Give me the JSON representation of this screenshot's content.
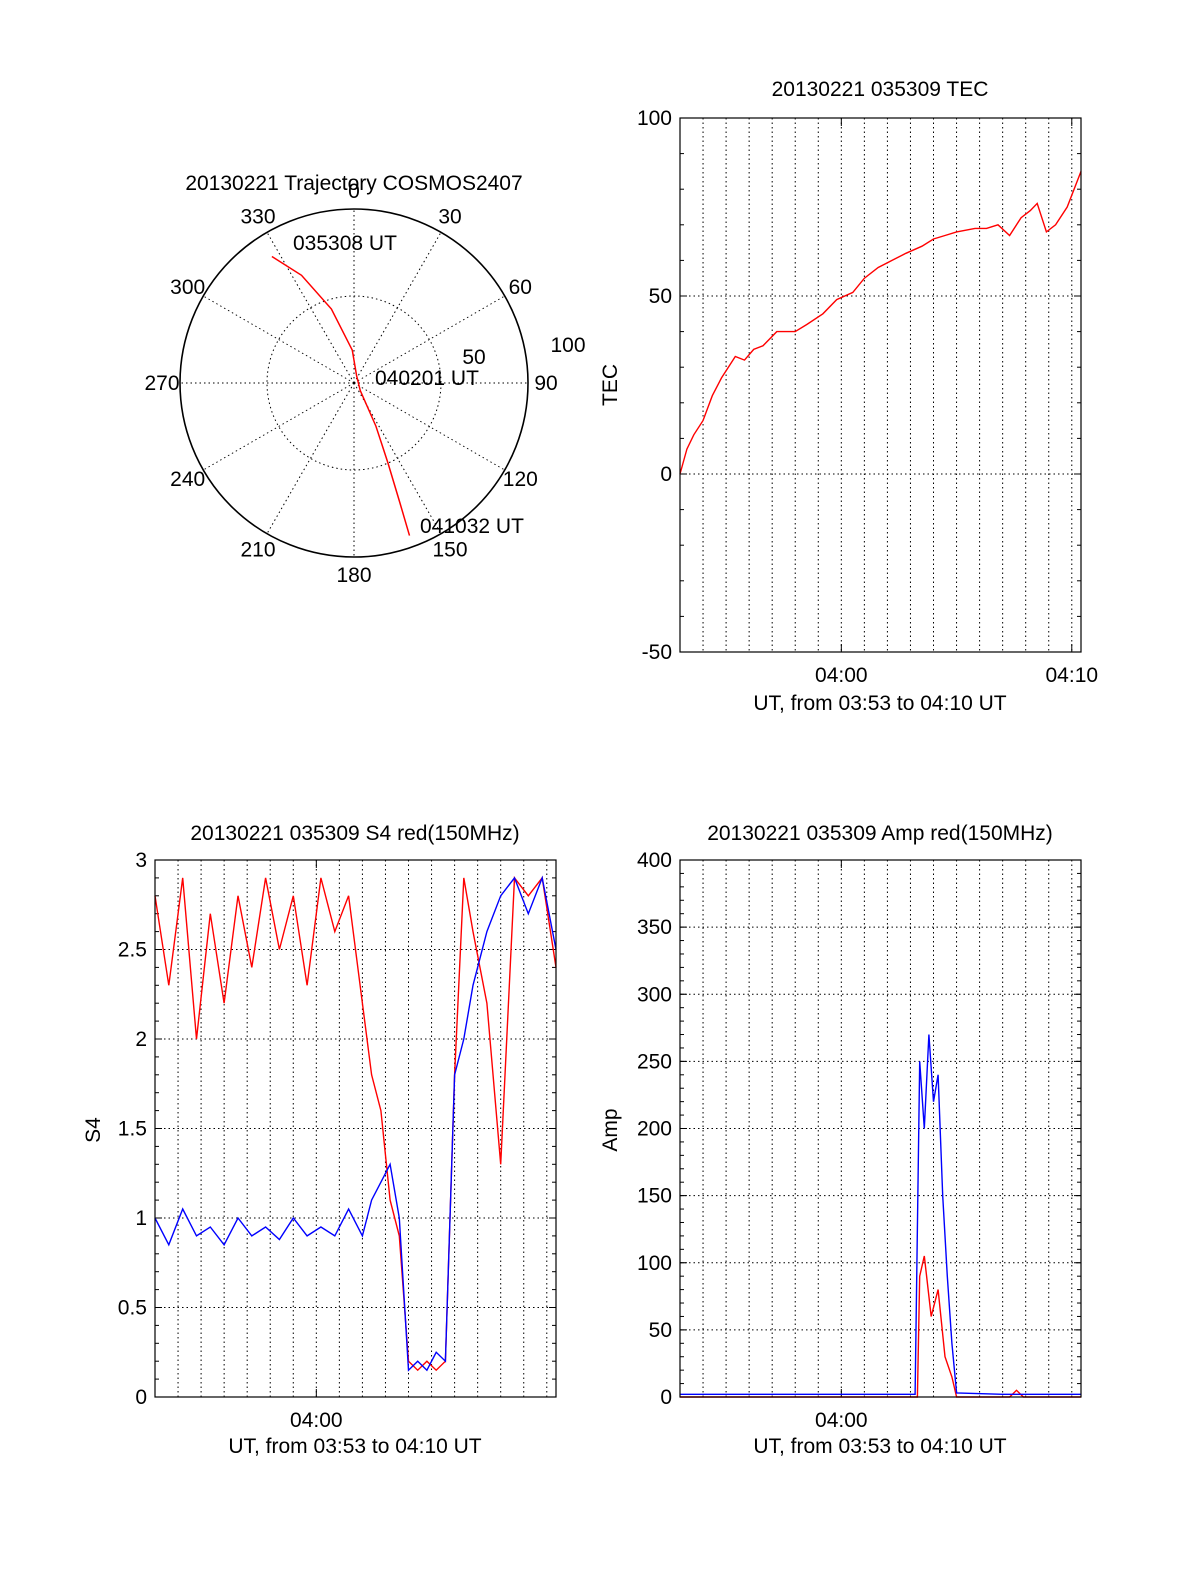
{
  "chart_data": [
    {
      "id": "polar",
      "type": "polar-trajectory",
      "title": "20130221 Trajectory COSMOS2407",
      "angle_labels": [
        "0",
        "30",
        "60",
        "90",
        "120",
        "150",
        "180",
        "210",
        "240",
        "270",
        "300",
        "330"
      ],
      "radius_labels": [
        "50",
        "100"
      ],
      "trajectory": [
        {
          "az": 327,
          "el": 12
        },
        {
          "az": 334,
          "el": 28
        },
        {
          "az": 343,
          "el": 50
        },
        {
          "az": 357,
          "el": 73
        },
        {
          "az": 20,
          "el": 86
        },
        {
          "az": 140,
          "el": 85
        },
        {
          "az": 153,
          "el": 65
        },
        {
          "az": 157,
          "el": 45
        },
        {
          "az": 159,
          "el": 24
        },
        {
          "az": 160,
          "el": 6
        }
      ],
      "annotations": [
        "035308 UT",
        "040201 UT",
        "041032 UT"
      ],
      "line_color": "#ff0000"
    },
    {
      "id": "tec",
      "type": "line",
      "title": "20130221 035309 TEC",
      "xlabel": "UT, from 03:53 to 04:10 UT",
      "ylabel": "TEC",
      "x_ticks": [
        "04:00",
        "04:10"
      ],
      "y_ticks": [
        "-50",
        "0",
        "50",
        "100"
      ],
      "ylim": [
        -50,
        100
      ],
      "xlim_min": [
        0,
        17.4
      ],
      "series": [
        {
          "color": "#ff0000",
          "x": [
            0,
            0.3,
            0.6,
            1.0,
            1.4,
            1.8,
            2.0,
            2.4,
            2.8,
            3.2,
            3.6,
            4.2,
            5.0,
            5.5,
            6.2,
            6.8,
            7.5,
            8.0,
            8.6,
            9.2,
            9.8,
            10.5,
            11.0,
            11.5,
            12.0,
            12.8,
            13.3,
            13.8,
            14.3,
            14.8,
            15.2,
            15.5,
            15.9,
            16.3,
            16.8,
            17.4
          ],
          "y": [
            0,
            7,
            11,
            15,
            22,
            27,
            29,
            33,
            32,
            35,
            36,
            40,
            40,
            42,
            45,
            49,
            51,
            55,
            58,
            60,
            62,
            64,
            66,
            67,
            68,
            69,
            69,
            70,
            67,
            72,
            74,
            76,
            68,
            70,
            75,
            85
          ]
        }
      ]
    },
    {
      "id": "s4",
      "type": "line",
      "title": "20130221 035309 S4 red(150MHz)",
      "xlabel": "UT, from 03:53 to 04:10 UT",
      "ylabel": "S4",
      "x_ticks": [
        "04:00"
      ],
      "y_ticks": [
        "0",
        "0.5",
        "1",
        "1.5",
        "2",
        "2.5",
        "3"
      ],
      "ylim": [
        0,
        3
      ],
      "xlim_min": [
        0,
        17.4
      ],
      "series": [
        {
          "color": "#ff0000",
          "x": [
            0,
            0.6,
            1.2,
            1.8,
            2.4,
            3.0,
            3.6,
            4.2,
            4.8,
            5.4,
            6.0,
            6.6,
            7.2,
            7.8,
            8.4,
            9.0,
            9.4,
            9.8,
            10.2,
            10.6,
            11.0,
            11.4,
            11.8,
            12.2,
            12.6,
            13.0,
            13.4,
            13.8,
            14.4,
            15.0,
            15.6,
            16.2,
            16.8,
            17.4
          ],
          "y": [
            2.8,
            2.3,
            2.9,
            2.0,
            2.7,
            2.2,
            2.8,
            2.4,
            2.9,
            2.5,
            2.8,
            2.3,
            2.9,
            2.6,
            2.8,
            2.2,
            1.8,
            1.6,
            1.1,
            0.9,
            0.2,
            0.15,
            0.2,
            0.15,
            0.2,
            1.8,
            2.9,
            2.6,
            2.2,
            1.3,
            2.9,
            2.8,
            2.9,
            2.4
          ]
        },
        {
          "color": "#0000ff",
          "x": [
            0,
            0.6,
            1.2,
            1.8,
            2.4,
            3.0,
            3.6,
            4.2,
            4.8,
            5.4,
            6.0,
            6.6,
            7.2,
            7.8,
            8.4,
            9.0,
            9.4,
            9.8,
            10.2,
            10.6,
            11.0,
            11.4,
            11.8,
            12.2,
            12.6,
            13.0,
            13.4,
            13.8,
            14.4,
            15.0,
            15.6,
            16.2,
            16.8,
            17.4
          ],
          "y": [
            1.0,
            0.85,
            1.05,
            0.9,
            0.95,
            0.85,
            1.0,
            0.9,
            0.95,
            0.88,
            1.0,
            0.9,
            0.95,
            0.9,
            1.05,
            0.9,
            1.1,
            1.2,
            1.3,
            1.0,
            0.15,
            0.2,
            0.15,
            0.25,
            0.2,
            1.8,
            2.0,
            2.3,
            2.6,
            2.8,
            2.9,
            2.7,
            2.9,
            2.5
          ]
        }
      ]
    },
    {
      "id": "amp",
      "type": "line",
      "title": "20130221 035309 Amp red(150MHz)",
      "xlabel": "UT, from 03:53 to 04:10 UT",
      "ylabel": "Amp",
      "x_ticks": [
        "04:00"
      ],
      "y_ticks": [
        "0",
        "50",
        "100",
        "150",
        "200",
        "250",
        "300",
        "350",
        "400"
      ],
      "ylim": [
        0,
        400
      ],
      "xlim_min": [
        0,
        17.4
      ],
      "series": [
        {
          "color": "#ff0000",
          "x": [
            0,
            10.3,
            10.4,
            10.6,
            10.9,
            11.2,
            11.5,
            11.8,
            12.0,
            14.3,
            14.6,
            14.9,
            17.4
          ],
          "y": [
            0,
            0,
            90,
            105,
            60,
            80,
            30,
            15,
            0,
            0,
            5,
            0,
            0
          ]
        },
        {
          "color": "#0000ff",
          "x": [
            0,
            2.0,
            4.0,
            6.0,
            8.0,
            10.2,
            10.4,
            10.6,
            10.8,
            11.0,
            11.2,
            11.4,
            11.6,
            11.8,
            12.0,
            14.0,
            17.4
          ],
          "y": [
            2,
            2,
            2,
            2,
            2,
            2,
            250,
            200,
            270,
            220,
            240,
            150,
            90,
            40,
            3,
            2,
            2
          ]
        }
      ]
    }
  ]
}
